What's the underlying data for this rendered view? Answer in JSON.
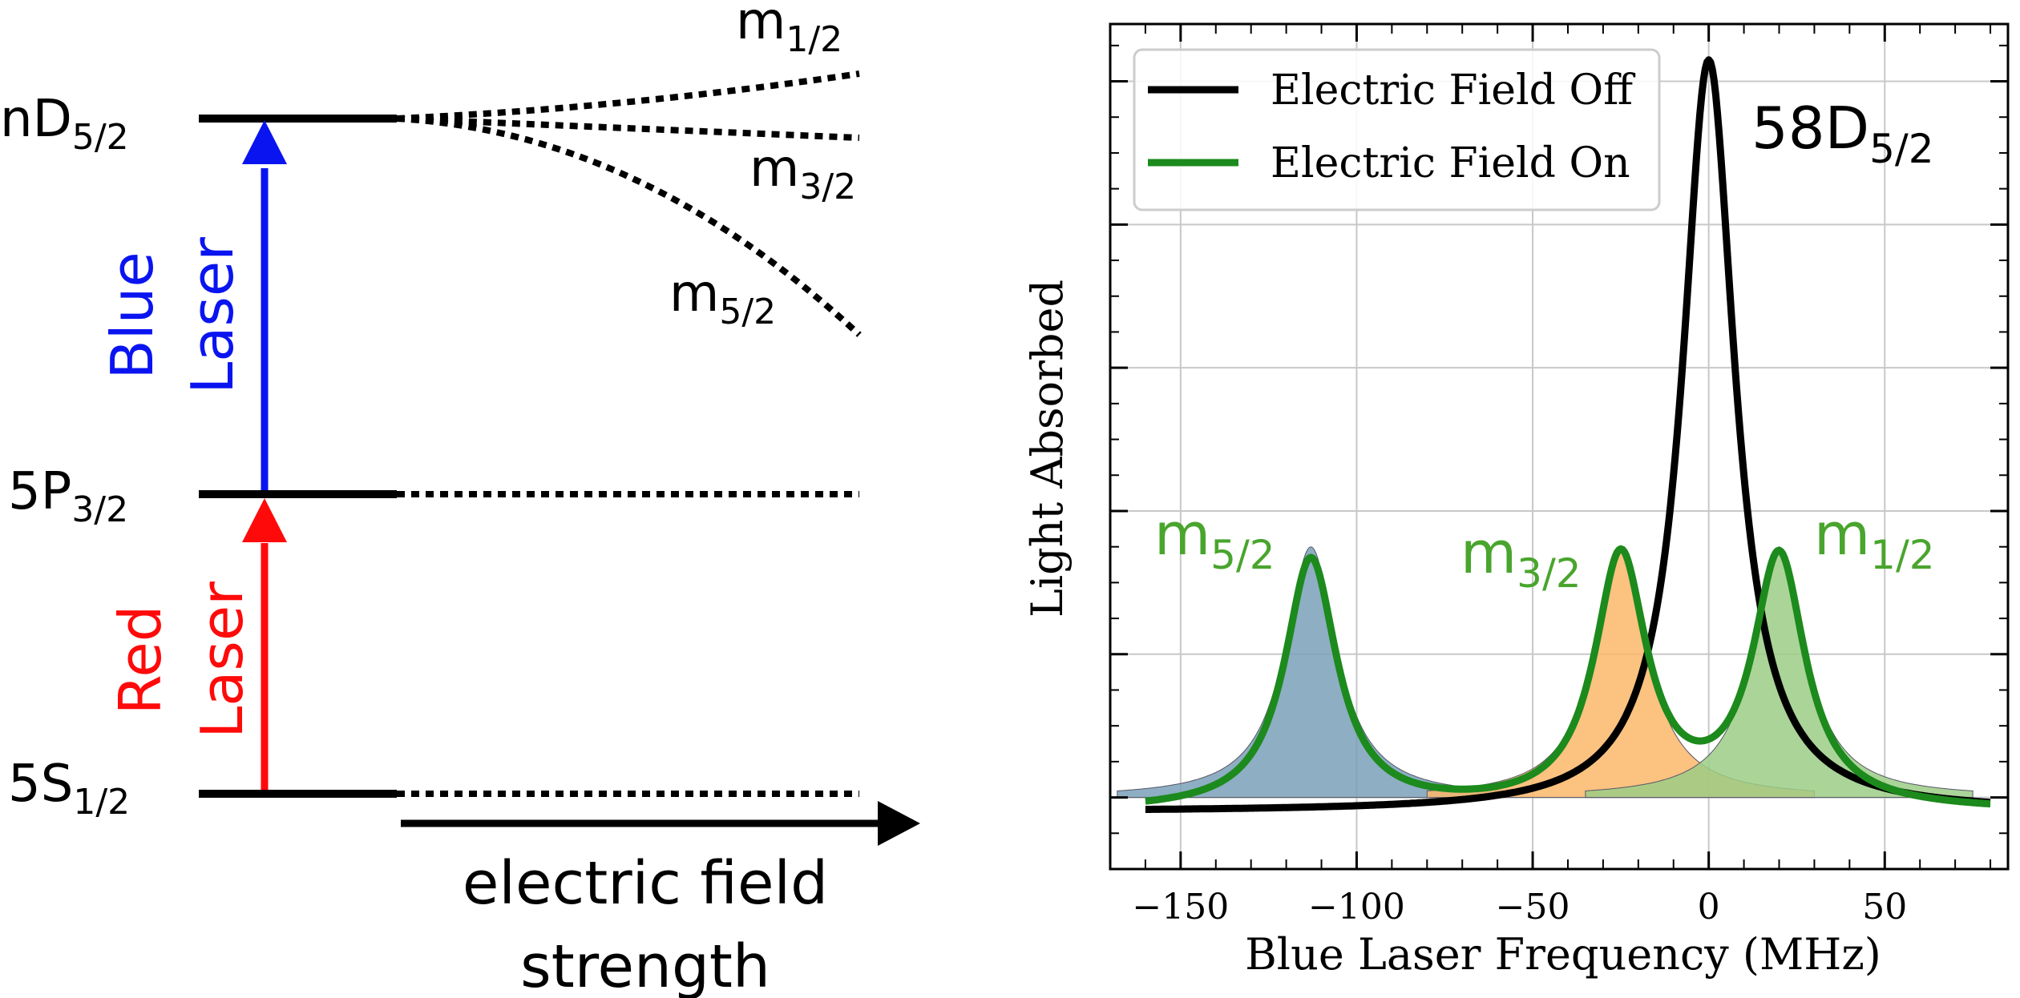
{
  "colors": {
    "black": "#000000",
    "blue_laser": "#0a14f0",
    "red_laser": "#ff0a0a",
    "field_off": "#000000",
    "field_on": "#1c8a1c",
    "label_green": "#49a52d",
    "peak_m52_fill": "#7aa0b9",
    "peak_m32_fill": "#fbb76a",
    "peak_m12_fill": "#9ccc86",
    "grid": "#c8c8c8"
  },
  "diagram": {
    "levels": {
      "nd52": {
        "main": "nD",
        "sub": "5/2"
      },
      "p32": {
        "main": "5P",
        "sub": "3/2"
      },
      "s12": {
        "main": "5S",
        "sub": "1/2"
      }
    },
    "blue_laser": {
      "line1": "Blue",
      "line2": "Laser"
    },
    "red_laser": {
      "line1": "Red",
      "line2": "Laser"
    },
    "sublevels": {
      "m12": {
        "main": "m",
        "sub": "1/2"
      },
      "m32": {
        "main": "m",
        "sub": "3/2"
      },
      "m52": {
        "main": "m",
        "sub": "5/2"
      }
    },
    "axis_label": {
      "line1": "electric field",
      "line2": "strength"
    }
  },
  "chart_data": {
    "type": "line",
    "title": "",
    "annotation": {
      "main": "58D",
      "sub": "5/2"
    },
    "xlabel": "Blue Laser Frequency (MHz)",
    "ylabel": "Light Absorbed",
    "xlim": [
      -170,
      85
    ],
    "ylim": [
      -0.1,
      1.08
    ],
    "xticks": [
      -150,
      -100,
      -50,
      0,
      50
    ],
    "xtick_labels": [
      "−150",
      "−100",
      "−50",
      "0",
      "50"
    ],
    "yticks": [
      0,
      0.2,
      0.4,
      0.6,
      0.8,
      1.0
    ],
    "grid": true,
    "legend": {
      "position": "top-left",
      "entries": [
        {
          "label": "Electric Field Off",
          "series": "off"
        },
        {
          "label": "Electric Field On",
          "series": "on"
        }
      ]
    },
    "series": [
      {
        "name": "Electric Field Off",
        "key": "off",
        "type": "lorentzian",
        "center": 0,
        "hwhm": 9,
        "amplitude": 1.05,
        "baseline": -0.02
      },
      {
        "name": "Electric Field On",
        "key": "on",
        "type": "sum-of-lorentzians",
        "baseline": -0.02,
        "components": [
          "m52",
          "m32",
          "m12"
        ]
      }
    ],
    "peaks": [
      {
        "key": "m52",
        "label_main": "m",
        "label_sub": "5/2",
        "center": -113,
        "hwhm": 9,
        "amplitude": 0.35
      },
      {
        "key": "m32",
        "label_main": "m",
        "label_sub": "3/2",
        "center": -25,
        "hwhm": 9,
        "amplitude": 0.35
      },
      {
        "key": "m12",
        "label_main": "m",
        "label_sub": "1/2",
        "center": 20,
        "hwhm": 9,
        "amplitude": 0.35
      }
    ]
  }
}
